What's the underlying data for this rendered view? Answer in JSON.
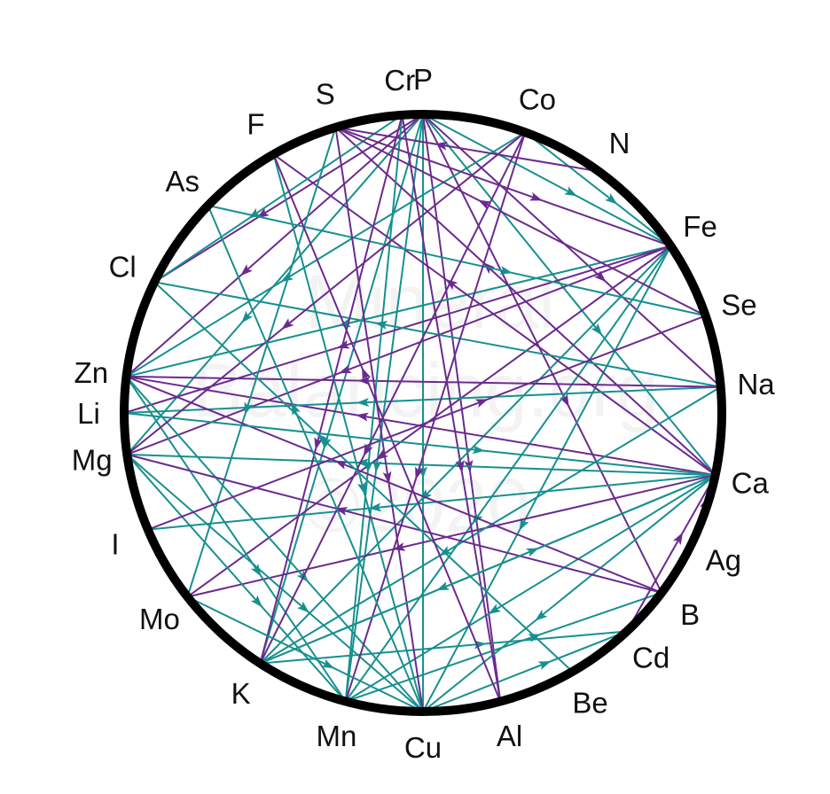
{
  "colors": {
    "teal": "#17908f",
    "purple": "#6b2a8f",
    "ring": "#000000"
  },
  "watermark": [
    "Mineral",
    "Balancing.org",
    "©2020"
  ],
  "nodes": [
    "P",
    "Co",
    "N",
    "Fe",
    "Se",
    "Na",
    "Ca",
    "Ag",
    "B",
    "Cd",
    "Be",
    "Al",
    "Cu",
    "Mn",
    "K",
    "Mo",
    "I",
    "Mg",
    "Li",
    "Zn",
    "Cl",
    "As",
    "F",
    "S",
    "Cr"
  ],
  "edges": [
    {
      "from": "P",
      "to": "Cu",
      "color": "teal"
    },
    {
      "from": "P",
      "to": "Fe",
      "color": "teal"
    },
    {
      "from": "P",
      "to": "Ca",
      "color": "teal"
    },
    {
      "from": "P",
      "to": "K",
      "color": "teal"
    },
    {
      "from": "P",
      "to": "Mn",
      "color": "teal"
    },
    {
      "from": "P",
      "to": "Mg",
      "color": "teal"
    },
    {
      "from": "P",
      "to": "Zn",
      "color": "purple"
    },
    {
      "from": "P",
      "to": "Al",
      "color": "purple"
    },
    {
      "from": "P",
      "to": "B",
      "color": "purple"
    },
    {
      "from": "P",
      "to": "Na",
      "color": "purple"
    },
    {
      "from": "P",
      "to": "Cl",
      "color": "purple"
    },
    {
      "from": "Fe",
      "to": "Cu",
      "color": "teal"
    },
    {
      "from": "Fe",
      "to": "K",
      "color": "teal"
    },
    {
      "from": "Fe",
      "to": "Mn",
      "color": "teal"
    },
    {
      "from": "Fe",
      "to": "Zn",
      "color": "teal"
    },
    {
      "from": "Fe",
      "to": "Mg",
      "color": "purple"
    },
    {
      "from": "Fe",
      "to": "Mo",
      "color": "purple"
    },
    {
      "from": "Fe",
      "to": "Li",
      "color": "purple"
    },
    {
      "from": "Ca",
      "to": "Mg",
      "color": "teal"
    },
    {
      "from": "Ca",
      "to": "K",
      "color": "teal"
    },
    {
      "from": "Ca",
      "to": "Mn",
      "color": "teal"
    },
    {
      "from": "Ca",
      "to": "Cu",
      "color": "teal"
    },
    {
      "from": "Ca",
      "to": "I",
      "color": "teal"
    },
    {
      "from": "Ca",
      "to": "Zn",
      "color": "purple"
    },
    {
      "from": "Ca",
      "to": "F",
      "color": "purple"
    },
    {
      "from": "Ca",
      "to": "S",
      "color": "purple"
    },
    {
      "from": "Ca",
      "to": "Mo",
      "color": "purple"
    },
    {
      "from": "Na",
      "to": "Li",
      "color": "teal"
    },
    {
      "from": "Na",
      "to": "K",
      "color": "teal"
    },
    {
      "from": "Na",
      "to": "Cl",
      "color": "teal"
    },
    {
      "from": "Na",
      "to": "Zn",
      "color": "purple"
    },
    {
      "from": "Zn",
      "to": "Cu",
      "color": "teal"
    },
    {
      "from": "Zn",
      "to": "Mn",
      "color": "teal"
    },
    {
      "from": "Mg",
      "to": "Mn",
      "color": "teal"
    },
    {
      "from": "Mg",
      "to": "Cu",
      "color": "teal"
    },
    {
      "from": "K",
      "to": "Cd",
      "color": "teal"
    },
    {
      "from": "Mn",
      "to": "B",
      "color": "teal"
    },
    {
      "from": "Cu",
      "to": "Cd",
      "color": "teal"
    },
    {
      "from": "Cr",
      "to": "Mn",
      "color": "teal"
    },
    {
      "from": "Cr",
      "to": "Cl",
      "color": "teal"
    },
    {
      "from": "F",
      "to": "Cu",
      "color": "teal"
    },
    {
      "from": "As",
      "to": "Se",
      "color": "teal"
    },
    {
      "from": "Co",
      "to": "Zn",
      "color": "teal"
    },
    {
      "from": "S",
      "to": "Mo",
      "color": "teal"
    },
    {
      "from": "Co",
      "to": "Fe",
      "color": "teal"
    },
    {
      "from": "S",
      "to": "Cu",
      "color": "purple"
    },
    {
      "from": "S",
      "to": "Fe",
      "color": "purple"
    },
    {
      "from": "Cr",
      "to": "K",
      "color": "purple"
    },
    {
      "from": "Cr",
      "to": "Al",
      "color": "purple"
    },
    {
      "from": "Co",
      "to": "Mg",
      "color": "purple"
    },
    {
      "from": "Co",
      "to": "Mn",
      "color": "purple"
    },
    {
      "from": "Co",
      "to": "K",
      "color": "purple"
    },
    {
      "from": "B",
      "to": "Mg",
      "color": "purple"
    },
    {
      "from": "B",
      "to": "Zn",
      "color": "purple"
    },
    {
      "from": "Be",
      "to": "Cl",
      "color": "teal"
    },
    {
      "from": "Al",
      "to": "F",
      "color": "purple"
    },
    {
      "from": "Cu",
      "to": "As",
      "color": "teal"
    },
    {
      "from": "N",
      "to": "S",
      "color": "purple"
    },
    {
      "from": "Se",
      "to": "S",
      "color": "purple"
    },
    {
      "from": "Cd",
      "to": "Ca",
      "color": "purple"
    },
    {
      "from": "Ag",
      "to": "Ca",
      "color": "purple"
    },
    {
      "from": "I",
      "to": "Se",
      "color": "purple"
    },
    {
      "from": "Mo",
      "to": "Cu",
      "color": "teal"
    },
    {
      "from": "K",
      "to": "Ca",
      "color": "teal"
    },
    {
      "from": "Li",
      "to": "Ca",
      "color": "teal"
    }
  ]
}
